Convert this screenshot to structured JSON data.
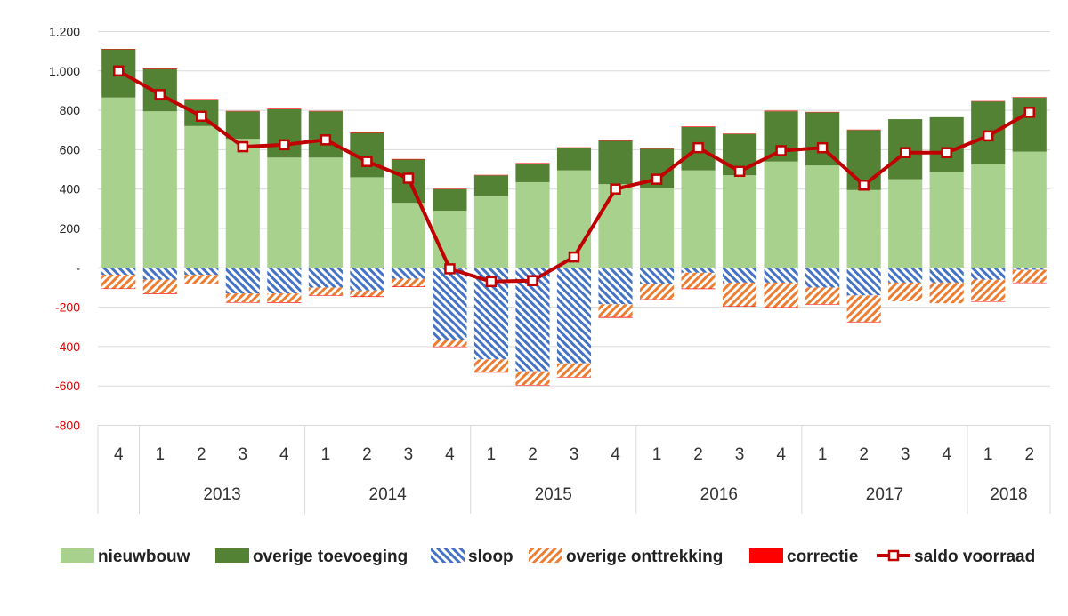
{
  "chart_data": {
    "type": "bar",
    "stacked": true,
    "title": "",
    "xlabel": "",
    "ylabel": "",
    "ylim": [
      -800,
      1200
    ],
    "y_ticks": [
      {
        "value": 1200,
        "label": "1.200"
      },
      {
        "value": 1000,
        "label": "1.000"
      },
      {
        "value": 800,
        "label": "800"
      },
      {
        "value": 600,
        "label": "600"
      },
      {
        "value": 400,
        "label": "400"
      },
      {
        "value": 200,
        "label": "200"
      },
      {
        "value": 0,
        "label": "-"
      },
      {
        "value": -200,
        "label": "-200"
      },
      {
        "value": -400,
        "label": "-400"
      },
      {
        "value": -600,
        "label": "-600"
      },
      {
        "value": -800,
        "label": "-800"
      }
    ],
    "grid": true,
    "legend_position": "bottom",
    "categories": [
      "4",
      "1",
      "2",
      "3",
      "4",
      "1",
      "2",
      "3",
      "4",
      "1",
      "2",
      "3",
      "4",
      "1",
      "2",
      "3",
      "4",
      "1",
      "2",
      "3",
      "4",
      "1",
      "2"
    ],
    "year_groups": [
      {
        "label": "",
        "count": 1
      },
      {
        "label": "2013",
        "count": 4
      },
      {
        "label": "2014",
        "count": 4
      },
      {
        "label": "2015",
        "count": 4
      },
      {
        "label": "2016",
        "count": 4
      },
      {
        "label": "2017",
        "count": 4
      },
      {
        "label": "2018",
        "count": 2
      }
    ],
    "series": [
      {
        "name": "nieuwbouw",
        "color": "#a9d18e",
        "pattern": "solid",
        "values": [
          865,
          795,
          720,
          655,
          560,
          560,
          460,
          330,
          290,
          365,
          435,
          495,
          425,
          405,
          495,
          470,
          540,
          520,
          395,
          450,
          485,
          525,
          590
        ]
      },
      {
        "name": "overige toevoeging",
        "color": "#548235",
        "pattern": "solid",
        "values": [
          245,
          215,
          135,
          140,
          245,
          235,
          225,
          220,
          110,
          105,
          95,
          115,
          220,
          200,
          220,
          210,
          255,
          270,
          305,
          305,
          280,
          320,
          275
        ]
      },
      {
        "name": "sloop",
        "color": "#4472c4",
        "pattern": "diagonal",
        "values": [
          -35,
          -60,
          -35,
          -130,
          -130,
          -100,
          -115,
          -55,
          -365,
          -465,
          -525,
          -485,
          -185,
          -80,
          -25,
          -75,
          -75,
          -100,
          -140,
          -75,
          -75,
          -60,
          -10
        ]
      },
      {
        "name": "overige onttrekking",
        "color": "#ed7d31",
        "pattern": "diagonal",
        "values": [
          -70,
          -70,
          -45,
          -45,
          -45,
          -40,
          -30,
          -40,
          -35,
          -65,
          -70,
          -70,
          -65,
          -80,
          -80,
          -120,
          -125,
          -85,
          -135,
          -95,
          -105,
          -110,
          -65
        ]
      },
      {
        "name": "correctie",
        "color": "#ff0000",
        "pattern": "solid",
        "values": [
          2,
          3,
          2,
          2,
          3,
          2,
          3,
          3,
          2,
          2,
          2,
          2,
          4,
          2,
          3,
          2,
          3,
          2,
          2,
          0,
          0,
          2,
          2
        ]
      },
      {
        "name": "saldo voorraad",
        "color": "#c00000",
        "type": "line",
        "values": [
          1000,
          880,
          770,
          615,
          625,
          650,
          540,
          455,
          -5,
          -70,
          -65,
          55,
          400,
          450,
          610,
          490,
          595,
          610,
          420,
          585,
          585,
          670,
          790
        ]
      }
    ]
  }
}
